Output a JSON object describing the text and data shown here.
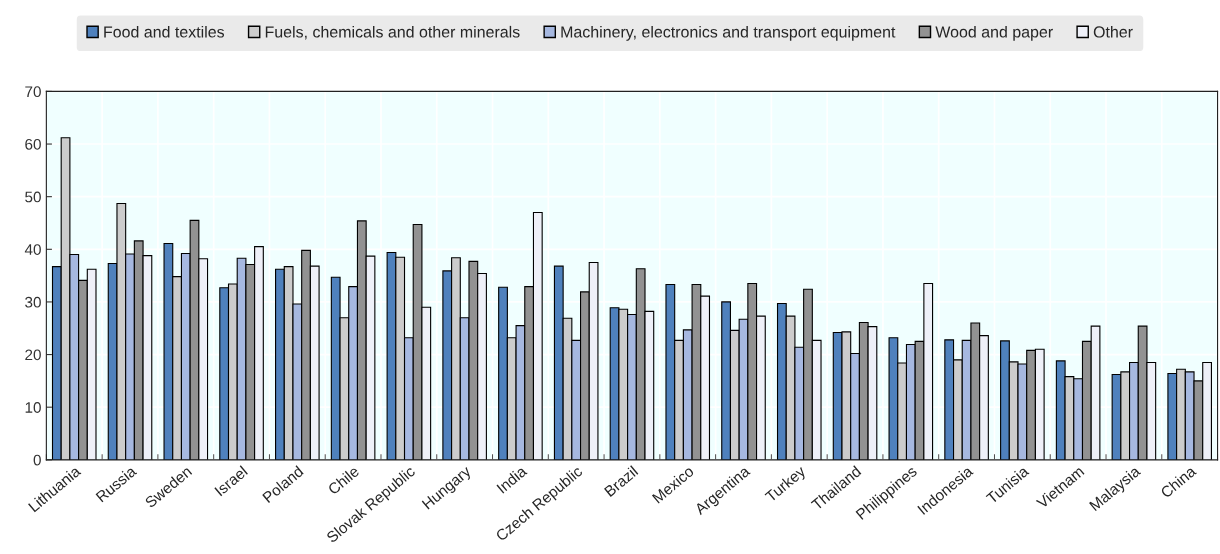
{
  "chart_data": {
    "type": "bar",
    "categories": [
      "Lithuania",
      "Russia",
      "Sweden",
      "Israel",
      "Poland",
      "Chile",
      "Slovak Republic",
      "Hungary",
      "India",
      "Czech Republic",
      "Brazil",
      "Mexico",
      "Argentina",
      "Turkey",
      "Thailand",
      "Philippines",
      "Indonesia",
      "Tunisia",
      "Vietnam",
      "Malaysia",
      "China"
    ],
    "series": [
      {
        "name": "Food and textiles",
        "color": "#4f81bd",
        "values": [
          36.7,
          37.3,
          41.1,
          32.7,
          36.2,
          34.7,
          39.4,
          35.9,
          32.8,
          36.8,
          28.9,
          33.3,
          30.0,
          29.7,
          24.2,
          23.2,
          22.8,
          22.6,
          18.8,
          16.2,
          16.4
        ]
      },
      {
        "name": "Fuels, chemicals and other minerals",
        "color": "#cccccc",
        "values": [
          61.2,
          48.7,
          34.8,
          33.4,
          36.7,
          27.0,
          38.5,
          38.4,
          23.2,
          26.9,
          28.6,
          22.7,
          24.6,
          27.3,
          24.3,
          18.4,
          19.0,
          18.6,
          15.8,
          16.7,
          17.2
        ]
      },
      {
        "name": "Machinery, electronics and transport equipment",
        "color": "#a6b8e0",
        "values": [
          39.0,
          39.1,
          39.2,
          38.3,
          29.6,
          32.9,
          23.2,
          27.0,
          25.5,
          22.7,
          27.6,
          24.7,
          26.7,
          21.4,
          20.2,
          21.9,
          22.7,
          18.2,
          15.4,
          18.5,
          16.7
        ]
      },
      {
        "name": "Wood and paper",
        "color": "#929292",
        "values": [
          34.1,
          41.6,
          45.5,
          37.1,
          39.8,
          45.4,
          44.7,
          37.7,
          32.9,
          31.9,
          36.3,
          33.3,
          33.5,
          32.4,
          26.1,
          22.5,
          26.0,
          20.8,
          22.5,
          25.4,
          15.0
        ]
      },
      {
        "name": "Other",
        "color": "#eef0f8",
        "values": [
          36.2,
          38.8,
          38.2,
          40.5,
          36.8,
          38.7,
          29.0,
          35.4,
          47.0,
          37.5,
          28.2,
          31.1,
          27.3,
          22.7,
          25.3,
          33.5,
          23.6,
          21.0,
          25.4,
          18.5,
          18.5
        ]
      }
    ],
    "ylim": [
      0,
      70
    ],
    "yticks": [
      0,
      10,
      20,
      30,
      40,
      50,
      60,
      70
    ],
    "grid": true,
    "legend": "top"
  }
}
